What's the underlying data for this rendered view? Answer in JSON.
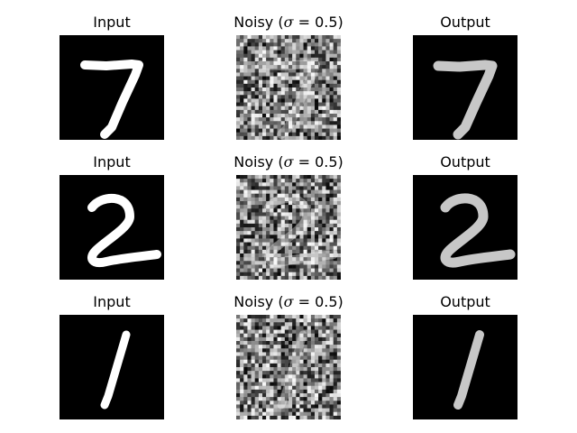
{
  "figure": {
    "rows": [
      {
        "digit": "7",
        "input_title": "Input",
        "noisy_title": {
          "prefix": "Noisy (",
          "symbol": "σ",
          "suffix": " = 0.5)"
        },
        "output_title": "Output"
      },
      {
        "digit": "2",
        "input_title": "Input",
        "noisy_title": {
          "prefix": "Noisy (",
          "symbol": "σ",
          "suffix": " = 0.5)"
        },
        "output_title": "Output"
      },
      {
        "digit": "1",
        "input_title": "Input",
        "noisy_title": {
          "prefix": "Noisy (",
          "symbol": "σ",
          "suffix": " = 0.5)"
        },
        "output_title": "Output"
      }
    ],
    "noise_sigma": 0.5,
    "colors": {
      "background": "#ffffff",
      "image_background": "#000000",
      "stroke": "#ffffff"
    }
  }
}
